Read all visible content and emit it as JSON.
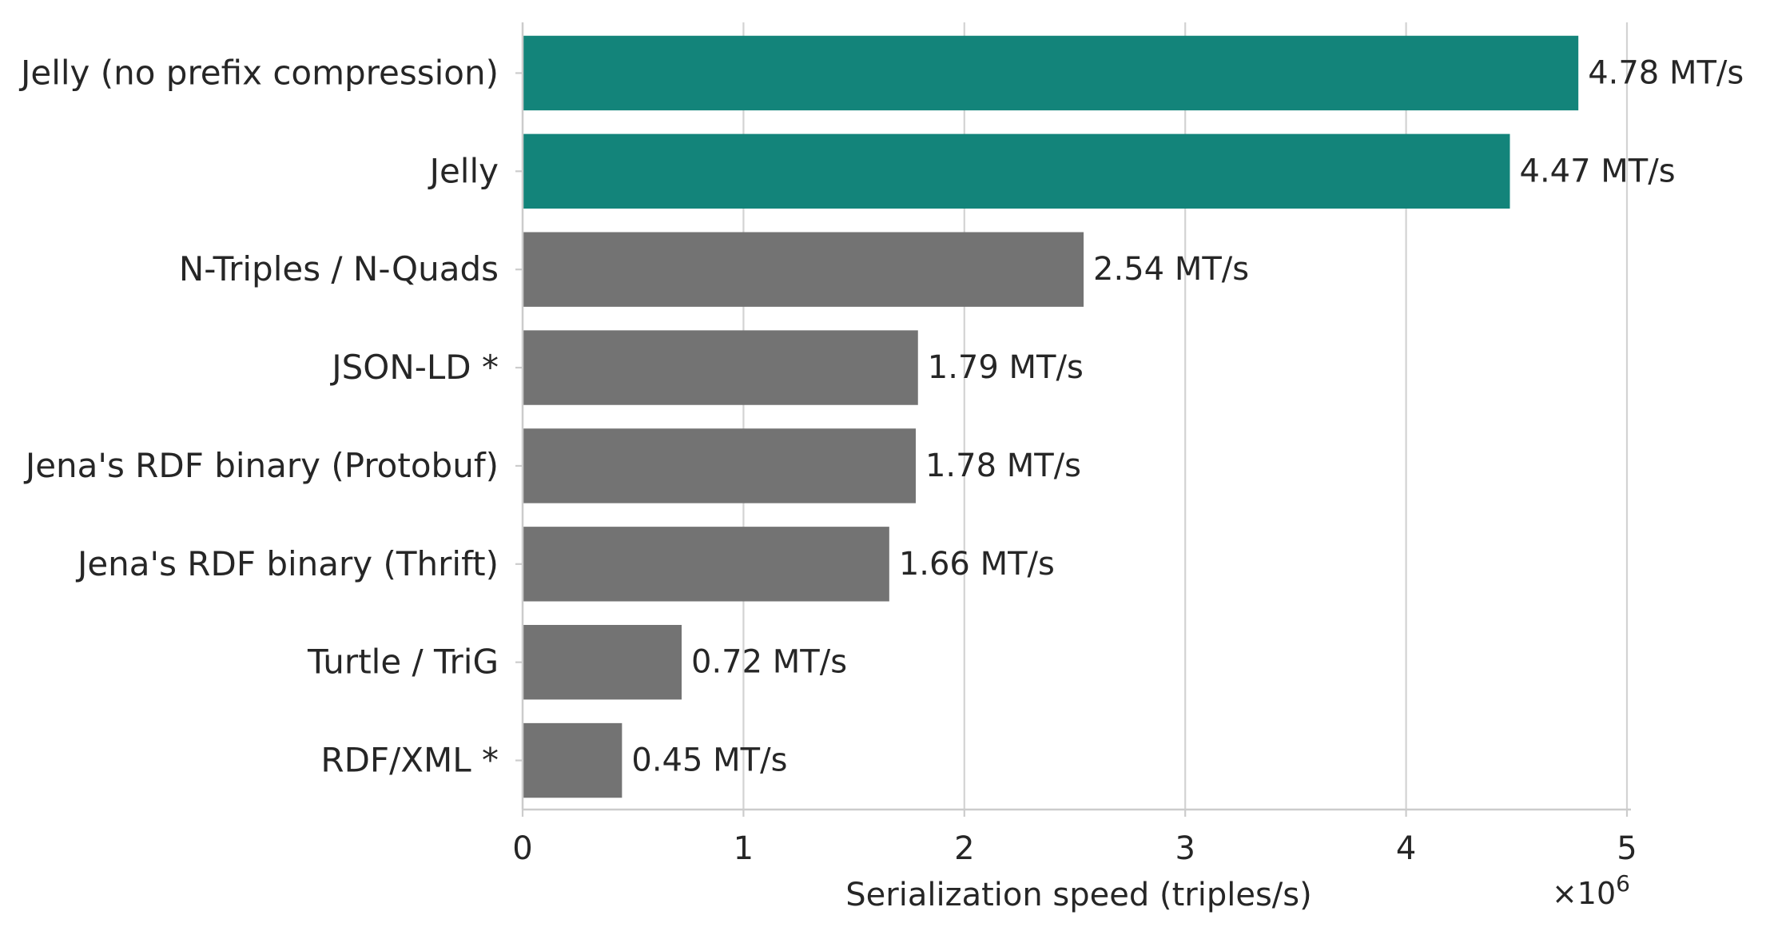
{
  "chart_data": {
    "type": "bar",
    "orientation": "horizontal",
    "categories": [
      "Jelly (no prefix compression)",
      "Jelly",
      "N-Triples / N-Quads",
      "JSON-LD *",
      "Jena's RDF binary (Protobuf)",
      "Jena's RDF binary (Thrift)",
      "Turtle / TriG",
      "RDF/XML *"
    ],
    "values": [
      4780000,
      4470000,
      2540000,
      1790000,
      1780000,
      1660000,
      720000,
      450000
    ],
    "data_labels": [
      "4.78 MT/s",
      "4.47 MT/s",
      "2.54 MT/s",
      "1.79 MT/s",
      "1.78 MT/s",
      "1.66 MT/s",
      "0.72 MT/s",
      "0.45 MT/s"
    ],
    "bar_colors": [
      "#13847a",
      "#13847a",
      "#737373",
      "#737373",
      "#737373",
      "#737373",
      "#737373",
      "#737373"
    ],
    "title": "",
    "xlabel": "Serialization speed (triples/s)",
    "ylabel": "",
    "xlim": [
      0,
      5000000
    ],
    "x_ticks": [
      0,
      1000000,
      2000000,
      3000000,
      4000000,
      5000000
    ],
    "x_tick_labels": [
      "0",
      "1",
      "2",
      "3",
      "4",
      "5"
    ],
    "x_scale_label": "×10",
    "x_scale_exponent": "6",
    "grid": "vertical",
    "legend": "none",
    "colors": {
      "highlight": "#13847a",
      "default": "#737373",
      "grid": "#d3d3d3",
      "axis": "#cccccc",
      "text": "#262626"
    }
  }
}
